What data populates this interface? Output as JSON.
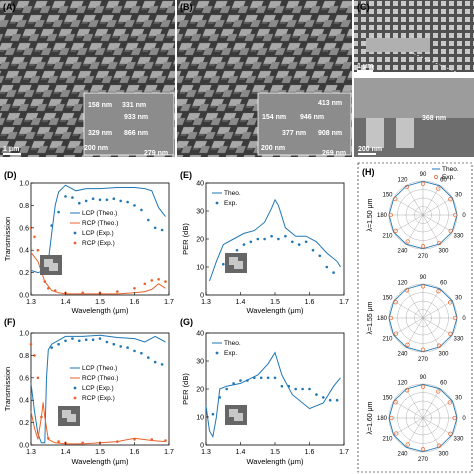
{
  "colors": {
    "theo": "#1f77b4",
    "exp": "#1f77b4",
    "lcp": "#1f77b4",
    "rcp": "#e8632b"
  },
  "sem": {
    "A": {
      "letter": "(A)",
      "scale": "1 μm",
      "dims": [
        "158 nm",
        "331 nm",
        "933 nm",
        "329 nm",
        "866 nm",
        "200 nm",
        "279 nm"
      ]
    },
    "B": {
      "letter": "(B)",
      "scale": "1 μm",
      "dims": [
        "413 nm",
        "154 nm",
        "946 nm",
        "377 nm",
        "908 nm",
        "200 nm",
        "269 nm"
      ]
    },
    "C": {
      "letter": "(C)",
      "scale_top": "1 μm",
      "dims": [
        "368 nm"
      ],
      "scale_bottom": "200 nm"
    }
  },
  "chart_data": [
    {
      "panel": "(D)",
      "type": "line",
      "xlabel": "Wavelength (μm)",
      "ylabel": "Transmission",
      "xlim": [
        1.3,
        1.7
      ],
      "ylim": [
        0,
        1
      ],
      "xticks": [
        "1.3",
        "1.4",
        "1.5",
        "1.6",
        "1.7"
      ],
      "yticks": [
        "0.0",
        "0.2",
        "0.4",
        "0.6",
        "0.8",
        "1.0"
      ],
      "legend": "center-right",
      "series": [
        {
          "name": "LCP (Theo.)",
          "style": "line",
          "color": "#1f77b4",
          "x": [
            1.3,
            1.32,
            1.34,
            1.35,
            1.36,
            1.37,
            1.38,
            1.4,
            1.43,
            1.46,
            1.5,
            1.55,
            1.6,
            1.63,
            1.65,
            1.67,
            1.69
          ],
          "y": [
            0.22,
            0.2,
            0.22,
            0.3,
            0.55,
            0.8,
            0.92,
            0.98,
            0.93,
            0.95,
            0.95,
            0.96,
            0.96,
            0.95,
            0.93,
            0.78,
            0.7
          ]
        },
        {
          "name": "RCP (Theo.)",
          "style": "line",
          "color": "#e8632b",
          "x": [
            1.3,
            1.32,
            1.34,
            1.36,
            1.38,
            1.4,
            1.45,
            1.5,
            1.55,
            1.6,
            1.63,
            1.65,
            1.67,
            1.69
          ],
          "y": [
            0.38,
            0.3,
            0.12,
            0.04,
            0.02,
            0.01,
            0.01,
            0.01,
            0.01,
            0.02,
            0.03,
            0.05,
            0.1,
            0.06
          ]
        },
        {
          "name": "LCP (Exp.)",
          "style": "dots",
          "color": "#1f77b4",
          "x": [
            1.36,
            1.38,
            1.4,
            1.42,
            1.44,
            1.46,
            1.48,
            1.5,
            1.52,
            1.54,
            1.56,
            1.58,
            1.6,
            1.62,
            1.64,
            1.66,
            1.68
          ],
          "y": [
            0.62,
            0.74,
            0.88,
            0.87,
            0.82,
            0.84,
            0.86,
            0.85,
            0.85,
            0.86,
            0.84,
            0.83,
            0.8,
            0.76,
            0.67,
            0.6,
            0.58
          ]
        },
        {
          "name": "RCP (Exp.)",
          "style": "dots",
          "color": "#e8632b",
          "x": [
            1.3,
            1.31,
            1.32,
            1.33,
            1.34,
            1.35,
            1.37,
            1.4,
            1.45,
            1.5,
            1.55,
            1.6,
            1.63,
            1.65,
            1.67,
            1.69
          ],
          "y": [
            0.6,
            0.52,
            0.4,
            0.25,
            0.12,
            0.06,
            0.04,
            0.02,
            0.02,
            0.02,
            0.03,
            0.06,
            0.1,
            0.13,
            0.14,
            0.12
          ]
        }
      ]
    },
    {
      "panel": "(E)",
      "type": "line",
      "xlabel": "Wavelength (μm)",
      "ylabel": "PER (dB)",
      "xlim": [
        1.3,
        1.7
      ],
      "ylim": [
        0,
        40
      ],
      "xticks": [
        "1.3",
        "1.4",
        "1.5",
        "1.6",
        "1.7"
      ],
      "yticks": [
        "0",
        "10",
        "20",
        "30",
        "40"
      ],
      "legend": "top-left",
      "series": [
        {
          "name": "Theo.",
          "style": "line",
          "color": "#1f77b4",
          "x": [
            1.31,
            1.33,
            1.35,
            1.38,
            1.41,
            1.44,
            1.47,
            1.49,
            1.5,
            1.51,
            1.53,
            1.56,
            1.59,
            1.62,
            1.65,
            1.68,
            1.69
          ],
          "y": [
            5,
            12,
            18,
            20,
            22,
            23,
            26,
            31,
            34,
            32,
            24,
            21,
            21,
            19,
            15,
            12,
            10
          ]
        },
        {
          "name": "Exp.",
          "style": "dots",
          "color": "#1f77b4",
          "x": [
            1.35,
            1.37,
            1.39,
            1.41,
            1.43,
            1.45,
            1.47,
            1.49,
            1.51,
            1.53,
            1.55,
            1.57,
            1.59,
            1.61,
            1.63,
            1.65,
            1.67
          ],
          "y": [
            11,
            14,
            16,
            18,
            19,
            20,
            20,
            21,
            20,
            21,
            19,
            18,
            19,
            16,
            14,
            10,
            8
          ]
        }
      ]
    },
    {
      "panel": "(F)",
      "type": "line",
      "xlabel": "Wavelength (μm)",
      "ylabel": "Transmission",
      "xlim": [
        1.3,
        1.7
      ],
      "ylim": [
        0,
        1
      ],
      "xticks": [
        "1.3",
        "1.4",
        "1.5",
        "1.6",
        "1.7"
      ],
      "yticks": [
        "0.0",
        "0.2",
        "0.4",
        "0.6",
        "0.8",
        "1.0"
      ],
      "legend": "center-right",
      "series": [
        {
          "name": "LCP (Theo.)",
          "style": "line",
          "color": "#1f77b4",
          "x": [
            1.3,
            1.31,
            1.32,
            1.33,
            1.34,
            1.345,
            1.35,
            1.36,
            1.4,
            1.45,
            1.5,
            1.55,
            1.6,
            1.63,
            1.66,
            1.69
          ],
          "y": [
            0.55,
            0.3,
            0.1,
            0.02,
            0.02,
            0.6,
            0.85,
            0.9,
            0.97,
            0.97,
            0.98,
            0.96,
            0.95,
            0.92,
            0.97,
            0.92
          ]
        },
        {
          "name": "RCP (Theo.)",
          "style": "line",
          "color": "#e8632b",
          "x": [
            1.3,
            1.31,
            1.32,
            1.33,
            1.335,
            1.34,
            1.35,
            1.37,
            1.4,
            1.45,
            1.5,
            1.55,
            1.6,
            1.65,
            1.69
          ],
          "y": [
            0.3,
            0.15,
            0.05,
            0.25,
            0.38,
            0.25,
            0.05,
            0.02,
            0.01,
            0.01,
            0.02,
            0.03,
            0.06,
            0.04,
            0.03
          ]
        },
        {
          "name": "LCP (Exp.)",
          "style": "dots",
          "color": "#1f77b4",
          "x": [
            1.36,
            1.38,
            1.4,
            1.42,
            1.44,
            1.46,
            1.48,
            1.5,
            1.52,
            1.54,
            1.56,
            1.58,
            1.6,
            1.62,
            1.64,
            1.66,
            1.68
          ],
          "y": [
            0.87,
            0.9,
            0.93,
            0.95,
            0.93,
            0.94,
            0.94,
            0.95,
            0.92,
            0.9,
            0.88,
            0.87,
            0.84,
            0.82,
            0.78,
            0.74,
            0.72
          ]
        },
        {
          "name": "RCP (Exp.)",
          "style": "dots",
          "color": "#e8632b",
          "x": [
            1.3,
            1.31,
            1.32,
            1.33,
            1.35,
            1.38,
            1.4,
            1.45,
            1.5,
            1.55,
            1.6,
            1.65,
            1.69
          ],
          "y": [
            0.9,
            0.8,
            0.6,
            0.25,
            0.06,
            0.03,
            0.02,
            0.02,
            0.02,
            0.03,
            0.05,
            0.05,
            0.04
          ]
        }
      ]
    },
    {
      "panel": "(G)",
      "type": "line",
      "xlabel": "Wavelength (μm)",
      "ylabel": "PER (dB)",
      "xlim": [
        1.3,
        1.7
      ],
      "ylim": [
        0,
        40
      ],
      "xticks": [
        "1.3",
        "1.4",
        "1.5",
        "1.6",
        "1.7"
      ],
      "yticks": [
        "0",
        "10",
        "20",
        "30",
        "40"
      ],
      "legend": "top-left",
      "series": [
        {
          "name": "Theo.",
          "style": "line",
          "color": "#1f77b4",
          "x": [
            1.3,
            1.31,
            1.32,
            1.33,
            1.34,
            1.36,
            1.4,
            1.45,
            1.48,
            1.5,
            1.52,
            1.55,
            1.6,
            1.64,
            1.67,
            1.69
          ],
          "y": [
            14,
            5,
            3,
            10,
            20,
            21,
            22,
            25,
            29,
            33,
            25,
            18,
            13,
            15,
            21,
            24
          ]
        },
        {
          "name": "Exp.",
          "style": "dots",
          "color": "#1f77b4",
          "x": [
            1.32,
            1.34,
            1.36,
            1.38,
            1.4,
            1.42,
            1.44,
            1.46,
            1.48,
            1.5,
            1.52,
            1.54,
            1.56,
            1.58,
            1.6,
            1.62,
            1.64,
            1.66,
            1.68
          ],
          "y": [
            11,
            17,
            20,
            22,
            23,
            23,
            24,
            24,
            24,
            24,
            21,
            21,
            20,
            20,
            20,
            18,
            17,
            16,
            16
          ]
        }
      ]
    },
    {
      "panel": "(H)",
      "type": "polar",
      "legend": "top-right",
      "angle_labels": [
        "0",
        "30",
        "60",
        "90",
        "120",
        "150",
        "180",
        "210",
        "240",
        "270",
        "300",
        "330"
      ],
      "series_names": [
        "Theo.",
        "Exp."
      ],
      "plots": [
        {
          "label": "λ=1.50 μm",
          "theo_r": [
            1.0,
            1.0,
            0.99,
            0.99,
            0.98,
            0.99,
            1.0,
            1.0,
            0.99,
            0.99,
            0.98,
            0.99
          ],
          "exp_r": [
            0.95,
            0.93,
            0.9,
            0.92,
            0.95,
            0.94,
            0.95,
            0.93,
            0.9,
            0.92,
            0.95,
            0.94
          ]
        },
        {
          "label": "λ=1.55 μm",
          "theo_r": [
            1.0,
            1.0,
            0.99,
            0.99,
            0.98,
            0.99,
            1.0,
            1.0,
            0.99,
            0.99,
            0.98,
            0.99
          ],
          "exp_r": [
            0.94,
            0.92,
            0.91,
            0.93,
            0.94,
            0.93,
            0.94,
            0.92,
            0.91,
            0.93,
            0.94,
            0.93
          ]
        },
        {
          "label": "λ=1.60 μm",
          "theo_r": [
            1.0,
            1.0,
            0.99,
            0.99,
            0.98,
            0.99,
            1.0,
            1.0,
            0.99,
            0.99,
            0.98,
            0.99
          ],
          "exp_r": [
            0.93,
            0.91,
            0.9,
            0.92,
            0.94,
            0.93,
            0.93,
            0.91,
            0.9,
            0.92,
            0.94,
            0.93
          ]
        }
      ]
    }
  ]
}
